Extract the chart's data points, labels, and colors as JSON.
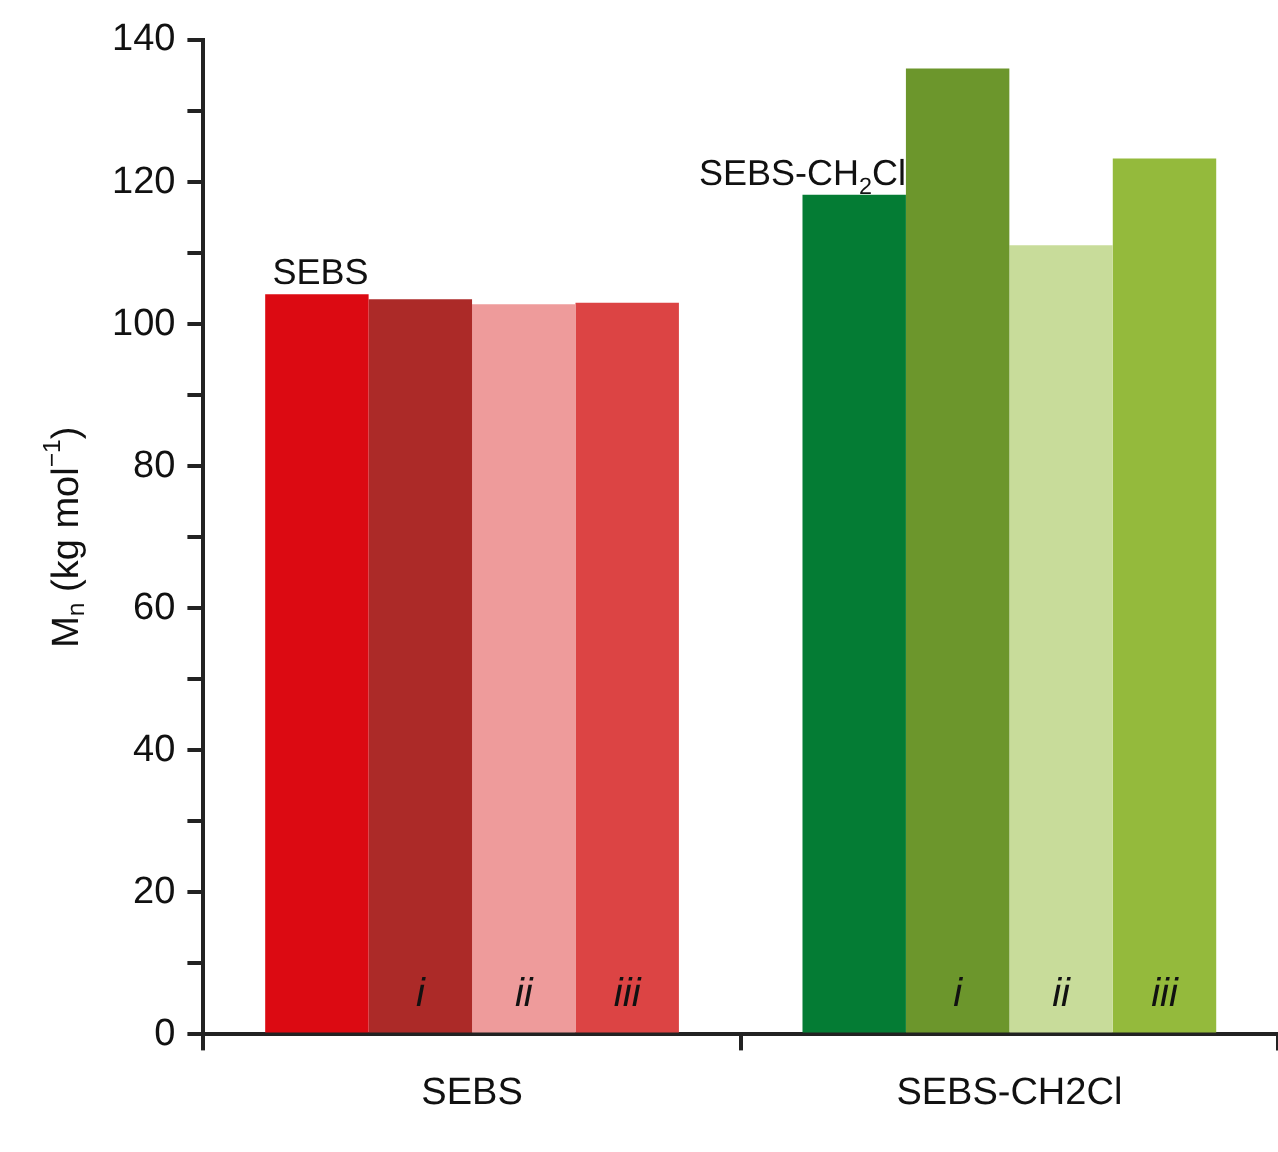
{
  "chart_data": {
    "type": "bar",
    "ylabel": "M$_{n}$ (kg mol$^{−1}$)",
    "categories": [
      "SEBS",
      "SEBS-CH2Cl"
    ],
    "series": [
      {
        "colors": [
          "#dc0a12",
          "#047c34"
        ],
        "values": [
          104.2,
          118.2
        ]
      },
      {
        "name": "i",
        "colors": [
          "#ac2a28",
          "#6c962c"
        ],
        "values": [
          103.5,
          136
        ]
      },
      {
        "name": "ii",
        "colors": [
          "#ee9b9b",
          "#c8dc9a"
        ],
        "values": [
          102.8,
          111.1
        ]
      },
      {
        "name": "iii",
        "colors": [
          "#dc4444",
          "#94ba3c"
        ],
        "values": [
          103,
          123.3
        ]
      }
    ],
    "ylim": [
      0,
      140
    ],
    "yticks": [
      0,
      {
        "value": 10,
        "label": null
      },
      20,
      {
        "value": 30,
        "label": null
      },
      40,
      {
        "value": 50,
        "label": null
      },
      60,
      {
        "value": 70,
        "label": null
      },
      80,
      {
        "value": 90,
        "label": null
      },
      100,
      {
        "value": 110,
        "label": null
      },
      120,
      {
        "value": 130,
        "label": null
      },
      140
    ],
    "annotations": [
      {
        "text": "SEBS",
        "x": "SEBS",
        "y": 104.2
      },
      {
        "text": "SEBS-CH$_{2}$Cl",
        "x": "SEBS-CH2Cl",
        "y": 118.2
      }
    ],
    "grid": false,
    "legend": false
  }
}
